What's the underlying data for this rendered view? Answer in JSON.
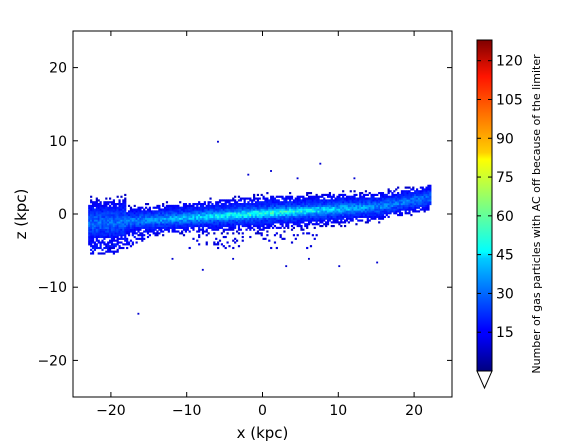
{
  "chart_data": {
    "type": "heatmap",
    "xlabel": "x (kpc)",
    "ylabel": "z (kpc)",
    "xlim": [
      -25,
      25
    ],
    "ylim": [
      -25,
      25
    ],
    "xticks": [
      -20,
      -10,
      0,
      10,
      20
    ],
    "yticks": [
      -20,
      -10,
      0,
      10,
      20
    ],
    "xtick_labels": [
      "−20",
      "−10",
      "0",
      "10",
      "20"
    ],
    "ytick_labels": [
      "−20",
      "−10",
      "0",
      "10",
      "20"
    ],
    "colorbar": {
      "label": "Number of gas particles with AC off because of the limiter",
      "min": 0,
      "max": 128,
      "ticks": [
        15,
        30,
        45,
        60,
        75,
        90,
        105,
        120
      ],
      "tick_labels": [
        "15",
        "30",
        "45",
        "60",
        "75",
        "90",
        "105",
        "120"
      ],
      "extend": "min",
      "colormap": "jet"
    },
    "structure": {
      "disk_x_range": [
        -23,
        22
      ],
      "disk_center_z": 0,
      "disk_peak_x_range": [
        -11,
        12
      ],
      "peak_counts_approx": 45,
      "disk_tilt_z_at_x_plus_20": 1.5,
      "lower_tail_z_at_x_minus_20": -4.5
    }
  }
}
